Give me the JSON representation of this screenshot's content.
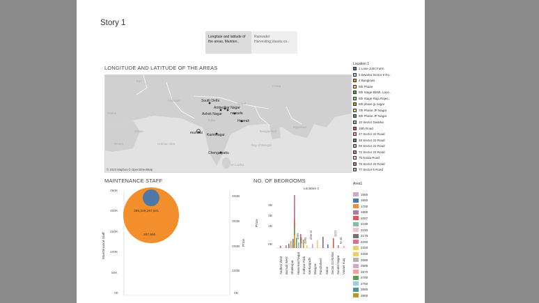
{
  "story": {
    "title": "Story 1",
    "points": [
      {
        "label": "Longitute and latitude of the areas, Mainten..",
        "active": true
      },
      {
        "label": "Rainwater Harvesting,Vaastu co..",
        "active": false
      }
    ]
  },
  "map": {
    "title": "LONGITUDE AND LATITUDE OF THE AREAS",
    "attribution": "© 2023 Mapbox © OpenStreetMap",
    "countries": [
      "Iran",
      "Pakistan",
      "India",
      "Nepal",
      "China",
      "Myanmar",
      "Oman",
      "Arabia",
      "Yemen",
      "Arabian Sea",
      "Bay of Bengal",
      "Sri Lanka",
      "Bangladesh"
    ],
    "places": [
      "South Delhi",
      "Ambedkar Nagar",
      "Ashok Nagar",
      "nawada",
      "Howrah",
      "mumbai",
      "Karimnagar",
      "Chengalpattu"
    ]
  },
  "legend_location": {
    "title": "Location 1",
    "items": [
      {
        "label": "1 Lane Johri Farm",
        "color": "#4e79a7"
      },
      {
        "label": "3 Dwarka Sector 9 Ro..",
        "color": "#a0cbe8"
      },
      {
        "label": "4 Bunglows",
        "color": "#f28e2b"
      },
      {
        "label": "5th Phase",
        "color": "#ffbe7d"
      },
      {
        "label": "5th Stage BEML Layo..",
        "color": "#59a14f"
      },
      {
        "label": "5th Stage Raja Rajes..",
        "color": "#8cd17d"
      },
      {
        "label": "6th phase jp nagar",
        "color": "#b6992d"
      },
      {
        "label": "7th Phase JP Nagar",
        "color": "#f1ce63"
      },
      {
        "label": "8th Phase JP Nagar",
        "color": "#499894"
      },
      {
        "label": "10 Sector Dwarka",
        "color": "#86bcb6"
      },
      {
        "label": "15th Road",
        "color": "#e15759"
      },
      {
        "label": "47 Sector 22 Road",
        "color": "#ff9d9a"
      },
      {
        "label": "48 Sector 22 Road",
        "color": "#79706e"
      },
      {
        "label": "59 Sector 22 Road",
        "color": "#bab0ac"
      },
      {
        "label": "72 Sector 23 Road",
        "color": "#d37295"
      },
      {
        "label": "75 Noida Road",
        "color": "#fabfd2"
      },
      {
        "label": "75 Sector 22 Road",
        "color": "#b07aa1"
      },
      {
        "label": "77 Sector 6 Road",
        "color": "#d4a6c8"
      }
    ]
  },
  "maintenance": {
    "title": "MAINTENANCE STAFF",
    "y_label": "Maintenance Staff",
    "y2_label": "Price",
    "big_value": "385,229,287,541",
    "small_value": "207,550",
    "y_ticks": [
      "250K",
      "200K",
      "150K",
      "100K",
      "50K",
      "0K"
    ],
    "y2_ticks": [
      "400B",
      "300B",
      "200B",
      "100B",
      "0B"
    ],
    "colors": {
      "outer": "#f28e2b",
      "inner": "#4e79a7"
    }
  },
  "bedrooms": {
    "title": "NO. OF BEDROOMS",
    "subtitle": "Location 1",
    "y_label": "Price",
    "y_ticks": [
      "3B",
      "2B",
      "1B",
      "0B"
    ],
    "x_labels": [
      "Andheri West",
      "Borivali West",
      "Ghatkopar",
      "Hanuman Nagar",
      "Jodhpur Park",
      "Kankurgachi",
      "Mirajpur",
      "Panchsheel",
      "Salori",
      "Sector 23 Rohini",
      "Sunder Nagar",
      "Vasant Kunj"
    ],
    "annotations": [
      "3999",
      "1999",
      "4999",
      "ohle M",
      "1211",
      "M 45"
    ]
  },
  "legend_area": {
    "title": "Area1",
    "items": [
      {
        "label": "1500",
        "color": "#d4a6c8"
      },
      {
        "label": "1650",
        "color": "#4e79a7"
      },
      {
        "label": "1700",
        "color": "#f28e2b"
      },
      {
        "label": "1800",
        "color": "#b07aa1"
      },
      {
        "label": "2007",
        "color": "#e15759"
      },
      {
        "label": "2100",
        "color": "#86bcb6"
      },
      {
        "label": "2150",
        "color": "#fabfd2"
      },
      {
        "label": "2178",
        "color": "#79706e"
      },
      {
        "label": "2250",
        "color": "#d37295"
      },
      {
        "label": "2320",
        "color": "#f1ce63"
      },
      {
        "label": "2400",
        "color": "#f1ce63"
      },
      {
        "label": "2500",
        "color": "#bab0ac"
      },
      {
        "label": "2585",
        "color": "#d4a6c8"
      },
      {
        "label": "2670",
        "color": "#ff9d9a"
      },
      {
        "label": "2700",
        "color": "#59a14f"
      },
      {
        "label": "2750",
        "color": "#a0cbe8"
      },
      {
        "label": "2800",
        "color": "#499894"
      },
      {
        "label": "2900",
        "color": "#b6992d"
      }
    ]
  }
}
